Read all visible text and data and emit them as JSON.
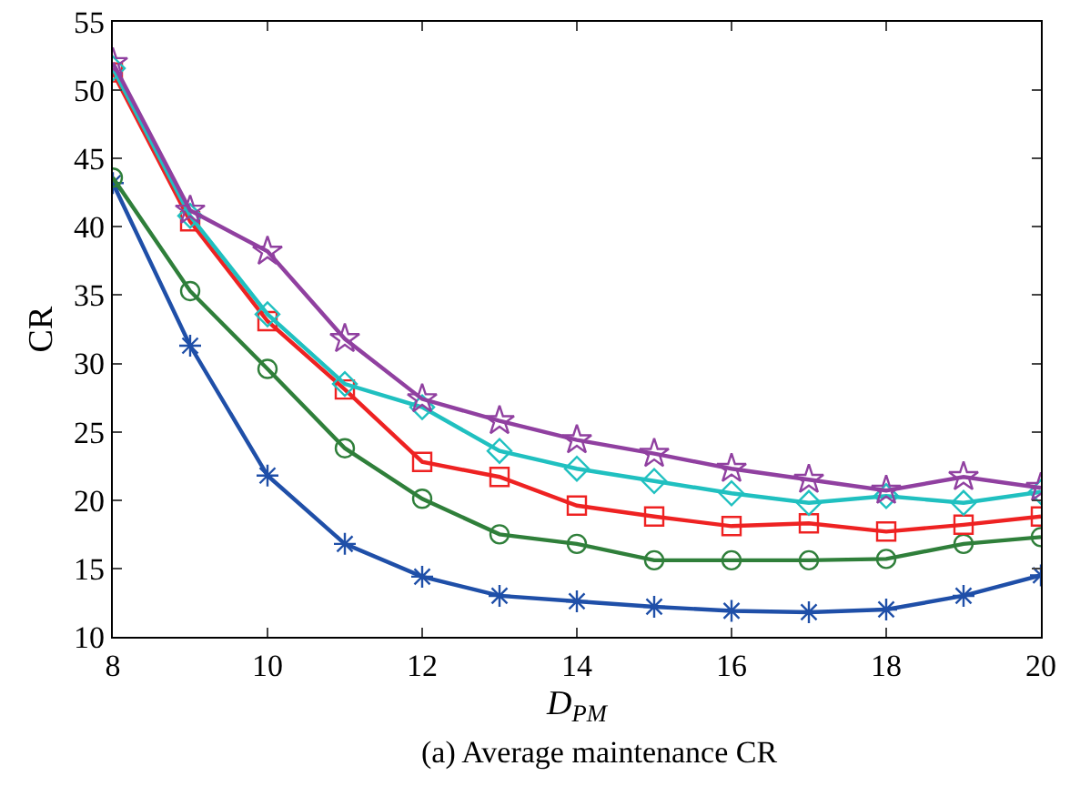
{
  "chart_data": {
    "type": "line",
    "title": "(a) Average maintenance CR",
    "xlabel": "D$_{PM}$",
    "ylabel": "CR",
    "x": [
      8,
      9,
      10,
      11,
      12,
      13,
      14,
      15,
      16,
      17,
      18,
      19,
      20
    ],
    "series": [
      {
        "color": "#1f4fa8",
        "marker": "cross",
        "values": [
          43.2,
          31.3,
          21.8,
          16.8,
          14.4,
          13.0,
          12.6,
          12.2,
          11.9,
          11.8,
          12.0,
          13.0,
          14.5
        ]
      },
      {
        "color": "#2f7f3a",
        "marker": "circle",
        "values": [
          43.6,
          35.3,
          29.6,
          23.8,
          20.1,
          17.5,
          16.8,
          15.6,
          15.6,
          15.6,
          15.7,
          16.8,
          17.3
        ]
      },
      {
        "color": "#ee2222",
        "marker": "square",
        "values": [
          51.3,
          40.4,
          33.1,
          28.1,
          22.8,
          21.7,
          19.6,
          18.8,
          18.1,
          18.3,
          17.7,
          18.2,
          18.8
        ]
      },
      {
        "color": "#20c0c0",
        "marker": "diamond",
        "values": [
          51.6,
          40.8,
          33.6,
          28.5,
          26.8,
          23.6,
          22.3,
          21.4,
          20.5,
          19.8,
          20.3,
          19.8,
          20.6
        ]
      },
      {
        "color": "#9040a0",
        "marker": "star",
        "values": [
          52.0,
          41.2,
          38.2,
          31.8,
          27.4,
          25.8,
          24.4,
          23.4,
          22.3,
          21.5,
          20.7,
          21.7,
          20.9
        ]
      }
    ],
    "xlim": [
      8,
      20
    ],
    "xticks": [
      8,
      10,
      12,
      14,
      16,
      18,
      20
    ],
    "ylim": [
      10,
      55
    ],
    "yticks": [
      10,
      15,
      20,
      25,
      30,
      35,
      40,
      45,
      50,
      55
    ],
    "grid": false,
    "legend": false,
    "line_style": "solid"
  }
}
